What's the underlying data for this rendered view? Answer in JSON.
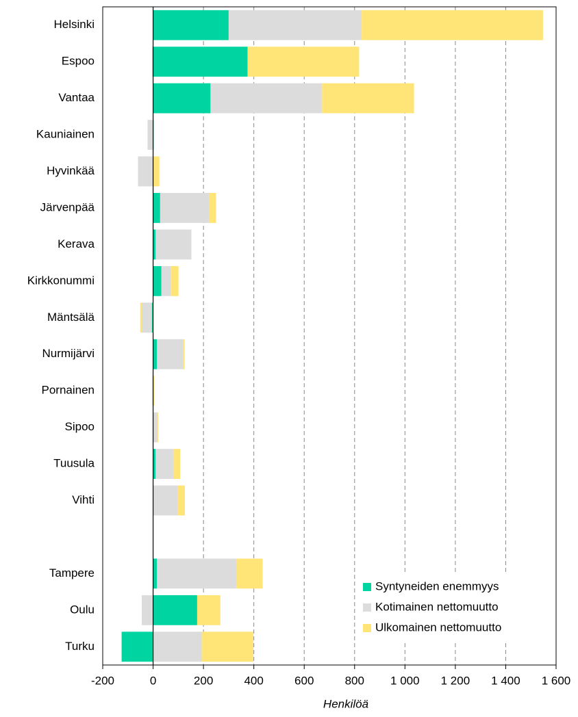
{
  "chart_data": {
    "type": "stacked_barh",
    "categories": [
      "Helsinki",
      "Espoo",
      "Vantaa",
      "Kauniainen",
      "Hyvinkää",
      "Järvenpää",
      "Kerava",
      "Kirkkonummi",
      "Mäntsälä",
      "Nurmijärvi",
      "Pornainen",
      "Sipoo",
      "Tuusula",
      "Vihti",
      null,
      "Tampere",
      "Oulu",
      "Turku"
    ],
    "series": [
      {
        "name": "Syntyneiden enemmyys",
        "color": "#00d4a0",
        "values": [
          300,
          375,
          228,
          2,
          0,
          28,
          10,
          33,
          -5,
          15,
          0,
          0,
          10,
          0,
          null,
          15,
          175,
          -125
        ]
      },
      {
        "name": "Kotimainen nettomuutto",
        "color": "#dcdcdc",
        "values": [
          528,
          -5,
          443,
          -22,
          -60,
          195,
          142,
          38,
          -40,
          105,
          -3,
          18,
          70,
          98,
          null,
          315,
          -45,
          193
        ]
      },
      {
        "name": "Ulkomainen nettomuutto",
        "color": "#ffe477",
        "values": [
          720,
          443,
          365,
          0,
          25,
          27,
          0,
          30,
          -6,
          5,
          5,
          3,
          28,
          28,
          null,
          105,
          92,
          205
        ]
      }
    ],
    "xlabel": "Henkilöä",
    "xlim": [
      -200,
      1600
    ],
    "xticks": [
      -200,
      0,
      200,
      400,
      600,
      800,
      {
        "value": 1000,
        "label": "1 000"
      },
      {
        "value": 1200,
        "label": "1 200"
      },
      {
        "value": 1400,
        "label": "1 400"
      },
      {
        "value": 1600,
        "label": "1 600"
      }
    ],
    "grid": true,
    "legend": "lower right"
  }
}
